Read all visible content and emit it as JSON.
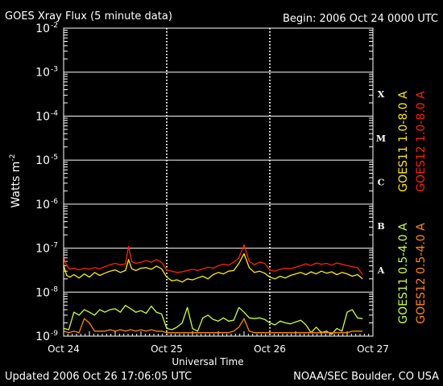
{
  "chart_data": {
    "type": "line",
    "title": "GOES Xray Flux (5 minute data)",
    "begin_label": "Begin:  2006 Oct 24 0000 UTC",
    "ylabel_main": "Watts  m",
    "ylabel_sup": "-2",
    "xlabel": "Universal Time",
    "yscale": "log",
    "ylim": [
      1e-09,
      0.01
    ],
    "y_ticks": [
      {
        "base": "10",
        "exp": "-2",
        "value": 0.01
      },
      {
        "base": "10",
        "exp": "-3",
        "value": 0.001
      },
      {
        "base": "10",
        "exp": "-4",
        "value": 0.0001
      },
      {
        "base": "10",
        "exp": "-5",
        "value": 1e-05
      },
      {
        "base": "10",
        "exp": "-6",
        "value": 1e-06
      },
      {
        "base": "10",
        "exp": "-7",
        "value": 1e-07
      },
      {
        "base": "10",
        "exp": "-8",
        "value": 1e-08
      },
      {
        "base": "10",
        "exp": "-9",
        "value": 1e-09
      }
    ],
    "x_ticks": [
      {
        "label": "Oct 24",
        "day": 0
      },
      {
        "label": "Oct 25",
        "day": 1
      },
      {
        "label": "Oct 26",
        "day": 2
      },
      {
        "label": "Oct 27",
        "day": 3
      }
    ],
    "xlim_days": [
      0,
      3
    ],
    "flare_classes": [
      {
        "label": "X",
        "low": 0.0001,
        "high": 0.001
      },
      {
        "label": "M",
        "low": 1e-05,
        "high": 0.0001
      },
      {
        "label": "C",
        "low": 1e-06,
        "high": 1e-05
      },
      {
        "label": "B",
        "low": 1e-07,
        "high": 1e-06
      },
      {
        "label": "A",
        "low": 1e-08,
        "high": 1e-07
      }
    ],
    "legend": {
      "long_channel": [
        {
          "name": "GOES11 1.0-8.0 A",
          "color": "#ffee00"
        },
        {
          "name": "GOES12 1.0-8.0 A",
          "color": "#ff2200"
        }
      ],
      "short_channel": [
        {
          "name": "GOES11 0.5-4.0 A",
          "color": "#ccff33"
        },
        {
          "name": "GOES12 0.5-4.0 A",
          "color": "#ff8800"
        }
      ]
    },
    "series": [
      {
        "name": "GOES12 1.0-8.0 A",
        "color": "#ff2200",
        "day": [
          0.0,
          0.03,
          0.06,
          0.1,
          0.15,
          0.2,
          0.25,
          0.3,
          0.35,
          0.4,
          0.45,
          0.5,
          0.55,
          0.6,
          0.63,
          0.66,
          0.7,
          0.75,
          0.8,
          0.85,
          0.9,
          0.95,
          1.0,
          1.05,
          1.1,
          1.15,
          1.2,
          1.25,
          1.3,
          1.35,
          1.4,
          1.45,
          1.5,
          1.55,
          1.6,
          1.65,
          1.7,
          1.75,
          1.8,
          1.85,
          1.9,
          1.95,
          2.0,
          2.05,
          2.1,
          2.15,
          2.2,
          2.25,
          2.3,
          2.35,
          2.4,
          2.45,
          2.5,
          2.55,
          2.6,
          2.65,
          2.7,
          2.75,
          2.8,
          2.85,
          2.9
        ],
        "value": [
          6e-08,
          4e-08,
          3.3e-08,
          3.5e-08,
          3.2e-08,
          3.5e-08,
          3.3e-08,
          3.6e-08,
          3.4e-08,
          3.8e-08,
          4.2e-08,
          4.5e-08,
          4.2e-08,
          4.4e-08,
          1.1e-07,
          5e-08,
          4.5e-08,
          4.8e-08,
          5.2e-08,
          4.8e-08,
          5.5e-08,
          4.8e-08,
          3.2e-08,
          3e-08,
          2.8e-08,
          2.9e-08,
          3.1e-08,
          3.3e-08,
          3.1e-08,
          3.4e-08,
          3.7e-08,
          3.5e-08,
          4e-08,
          4.3e-08,
          4.1e-08,
          4.8e-08,
          6e-08,
          1.2e-07,
          5e-08,
          4.2e-08,
          4.8e-08,
          4.5e-08,
          3.2e-08,
          3e-08,
          3.3e-08,
          3.5e-08,
          3.4e-08,
          3.7e-08,
          4e-08,
          4.4e-08,
          4e-08,
          4.6e-08,
          4.3e-08,
          4.5e-08,
          4.1e-08,
          4.6e-08,
          4.3e-08,
          4e-08,
          3.8e-08,
          3.6e-08,
          2.5e-08
        ]
      },
      {
        "name": "GOES11 1.0-8.0 A",
        "color": "#ffee00",
        "day": [
          0.0,
          0.03,
          0.06,
          0.1,
          0.15,
          0.2,
          0.25,
          0.3,
          0.35,
          0.4,
          0.45,
          0.5,
          0.55,
          0.6,
          0.63,
          0.66,
          0.7,
          0.75,
          0.8,
          0.85,
          0.9,
          0.95,
          1.0,
          1.05,
          1.1,
          1.15,
          1.2,
          1.25,
          1.3,
          1.35,
          1.4,
          1.45,
          1.5,
          1.55,
          1.6,
          1.65,
          1.7,
          1.75,
          1.8,
          1.85,
          1.9,
          1.95,
          2.0,
          2.05,
          2.1,
          2.15,
          2.2,
          2.25,
          2.3,
          2.35,
          2.4,
          2.45,
          2.5,
          2.55,
          2.6,
          2.65,
          2.7,
          2.75,
          2.8,
          2.85,
          2.9
        ],
        "value": [
          4e-08,
          2.4e-08,
          2.2e-08,
          2.5e-08,
          2.1e-08,
          2.6e-08,
          2.2e-08,
          2.8e-08,
          2.4e-08,
          2.7e-08,
          3e-08,
          3.2e-08,
          2.8e-08,
          3.1e-08,
          5.5e-08,
          3.4e-08,
          3.1e-08,
          3.5e-08,
          3.6e-08,
          3.3e-08,
          3.9e-08,
          3.4e-08,
          2.2e-08,
          1.8e-08,
          1.9e-08,
          1.7e-08,
          2e-08,
          1.9e-08,
          2.1e-08,
          2.3e-08,
          2e-08,
          2.5e-08,
          2.8e-08,
          2.6e-08,
          3e-08,
          3.1e-08,
          4.5e-08,
          7.5e-08,
          3.6e-08,
          2.8e-08,
          3e-08,
          2.7e-08,
          2.2e-08,
          2e-08,
          2.3e-08,
          2.1e-08,
          2.4e-08,
          2.6e-08,
          2.8e-08,
          2.5e-08,
          2.9e-08,
          2.6e-08,
          3e-08,
          2.7e-08,
          2.9e-08,
          2.5e-08,
          2.8e-08,
          2.6e-08,
          2.3e-08,
          2.5e-08,
          2e-08
        ]
      },
      {
        "name": "GOES11 0.5-4.0 A",
        "color": "#ccff33",
        "day": [
          0.0,
          0.05,
          0.1,
          0.15,
          0.2,
          0.25,
          0.3,
          0.35,
          0.4,
          0.45,
          0.5,
          0.55,
          0.6,
          0.65,
          0.7,
          0.75,
          0.8,
          0.85,
          0.9,
          0.95,
          1.0,
          1.05,
          1.1,
          1.15,
          1.2,
          1.25,
          1.3,
          1.35,
          1.4,
          1.45,
          1.5,
          1.55,
          1.6,
          1.65,
          1.7,
          1.75,
          1.8,
          1.85,
          1.9,
          1.95,
          2.0,
          2.05,
          2.1,
          2.15,
          2.2,
          2.25,
          2.3,
          2.35,
          2.4,
          2.45,
          2.5,
          2.55,
          2.6,
          2.65,
          2.7,
          2.75,
          2.8,
          2.85,
          2.9
        ],
        "value": [
          1.5e-09,
          1.4e-09,
          3.5e-09,
          3e-09,
          4e-09,
          3.5e-09,
          3e-09,
          4e-09,
          3.5e-09,
          4e-09,
          4.2e-09,
          3.5e-09,
          5e-09,
          4.2e-09,
          3.5e-09,
          3.8e-09,
          3.3e-09,
          4.8e-09,
          3.5e-09,
          3.2e-09,
          1.5e-09,
          1.4e-09,
          1.6e-09,
          2e-09,
          4.5e-09,
          1.5e-09,
          1.3e-09,
          2.6e-09,
          3e-09,
          2.4e-09,
          2.2e-09,
          2.6e-09,
          2.2e-09,
          2.3e-09,
          4.5e-09,
          3.5e-09,
          2.6e-09,
          2.5e-09,
          2.6e-09,
          2.4e-09,
          2e-09,
          1.8e-09,
          2.2e-09,
          2e-09,
          1.9e-09,
          2.1e-09,
          2.3e-09,
          1.8e-09,
          1.2e-09,
          1.6e-09,
          1.2e-09,
          1.3e-09,
          1.1e-09,
          1.5e-09,
          1.3e-09,
          3.5e-09,
          4e-09,
          2.6e-09,
          2.5e-09
        ]
      },
      {
        "name": "GOES12 0.5-4.0 A",
        "color": "#ff8800",
        "day": [
          0.0,
          0.05,
          0.1,
          0.15,
          0.2,
          0.25,
          0.3,
          0.35,
          0.4,
          0.45,
          0.5,
          0.55,
          0.6,
          0.65,
          0.7,
          0.75,
          0.8,
          0.85,
          0.9,
          0.95,
          1.0,
          1.05,
          1.1,
          1.15,
          1.2,
          1.25,
          1.3,
          1.35,
          1.4,
          1.45,
          1.5,
          1.55,
          1.6,
          1.65,
          1.7,
          1.75,
          1.8,
          1.85,
          1.9,
          1.95,
          2.0,
          2.05,
          2.1,
          2.15,
          2.2,
          2.25,
          2.3,
          2.35,
          2.4,
          2.45,
          2.5,
          2.55,
          2.6,
          2.65,
          2.7,
          2.75,
          2.8,
          2.85,
          2.9
        ],
        "value": [
          1.3e-09,
          1.2e-09,
          1.3e-09,
          1.2e-09,
          2.5e-09,
          2e-09,
          1.3e-09,
          1.3e-09,
          1.3e-09,
          1.4e-09,
          1.3e-09,
          1.4e-09,
          1.3e-09,
          1.4e-09,
          1.3e-09,
          1.4e-09,
          1.3e-09,
          1.4e-09,
          1.3e-09,
          1.3e-09,
          1.2e-09,
          1.2e-09,
          1.2e-09,
          1.2e-09,
          1.2e-09,
          1.2e-09,
          1.2e-09,
          1.2e-09,
          1.2e-09,
          1.2e-09,
          1.2e-09,
          1.2e-09,
          1.2e-09,
          1.3e-09,
          1.6e-09,
          2.5e-09,
          1.3e-09,
          1.2e-09,
          1.2e-09,
          1.2e-09,
          1.2e-09,
          1.2e-09,
          1.2e-09,
          1.2e-09,
          1.2e-09,
          1.2e-09,
          1.2e-09,
          1.2e-09,
          1.2e-09,
          1.2e-09,
          1.2e-09,
          1.2e-09,
          1.2e-09,
          1.2e-09,
          1.2e-09,
          1.2e-09,
          1.3e-09,
          1.3e-09,
          1.3e-09
        ]
      }
    ]
  },
  "footer": {
    "updated": "Updated 2006 Oct 26 17:06:05 UTC",
    "credit": "NOAA/SEC Boulder, CO USA"
  }
}
